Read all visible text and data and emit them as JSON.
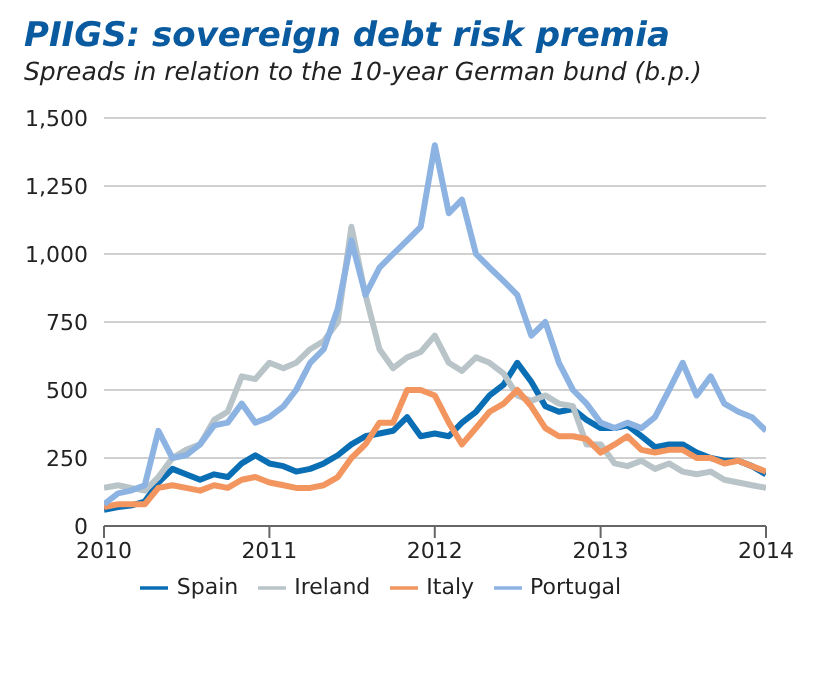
{
  "chart_data": {
    "type": "line",
    "title": "PIIGS: sovereign debt risk premia",
    "subtitle": "Spreads in relation to the 10-year German bund (b.p.)",
    "x": [
      "2010-01",
      "2010-02",
      "2010-03",
      "2010-04",
      "2010-05",
      "2010-06",
      "2010-07",
      "2010-08",
      "2010-09",
      "2010-10",
      "2010-11",
      "2010-12",
      "2011-01",
      "2011-02",
      "2011-03",
      "2011-04",
      "2011-05",
      "2011-06",
      "2011-07",
      "2011-08",
      "2011-09",
      "2011-10",
      "2011-11",
      "2011-12",
      "2012-01",
      "2012-02",
      "2012-03",
      "2012-04",
      "2012-05",
      "2012-06",
      "2012-07",
      "2012-08",
      "2012-09",
      "2012-10",
      "2012-11",
      "2012-12",
      "2013-01",
      "2013-02",
      "2013-03",
      "2013-04",
      "2013-05",
      "2013-06",
      "2013-07",
      "2013-08",
      "2013-09",
      "2013-10",
      "2013-11",
      "2013-12",
      "2014-01"
    ],
    "series": [
      {
        "name": "Spain",
        "color": "#0a6eb4",
        "values": [
          60,
          70,
          75,
          90,
          160,
          210,
          190,
          170,
          190,
          180,
          230,
          260,
          230,
          220,
          200,
          210,
          230,
          260,
          300,
          330,
          340,
          350,
          400,
          330,
          340,
          330,
          380,
          420,
          480,
          520,
          600,
          530,
          440,
          420,
          430,
          390,
          360,
          360,
          370,
          330,
          290,
          300,
          300,
          270,
          250,
          240,
          240,
          220,
          190
        ]
      },
      {
        "name": "Ireland",
        "color": "#b9c4c9",
        "values": [
          140,
          150,
          140,
          130,
          180,
          250,
          280,
          300,
          390,
          420,
          550,
          540,
          600,
          580,
          600,
          650,
          680,
          750,
          1100,
          850,
          650,
          580,
          620,
          640,
          700,
          600,
          570,
          620,
          600,
          560,
          480,
          460,
          480,
          450,
          440,
          300,
          300,
          230,
          220,
          240,
          210,
          230,
          200,
          190,
          200,
          170,
          160,
          150,
          140
        ]
      },
      {
        "name": "Italy",
        "color": "#f2955f",
        "values": [
          70,
          80,
          80,
          80,
          140,
          150,
          140,
          130,
          150,
          140,
          170,
          180,
          160,
          150,
          140,
          140,
          150,
          180,
          250,
          300,
          380,
          380,
          500,
          500,
          480,
          380,
          300,
          360,
          420,
          450,
          500,
          440,
          360,
          330,
          330,
          320,
          270,
          300,
          330,
          280,
          270,
          280,
          280,
          250,
          250,
          230,
          240,
          220,
          200
        ]
      },
      {
        "name": "Portugal",
        "color": "#8db3e2",
        "values": [
          80,
          120,
          130,
          150,
          350,
          250,
          260,
          300,
          370,
          380,
          450,
          380,
          400,
          440,
          500,
          600,
          650,
          800,
          1050,
          850,
          950,
          1000,
          1050,
          1100,
          1400,
          1150,
          1200,
          1000,
          950,
          900,
          850,
          700,
          750,
          600,
          500,
          450,
          380,
          360,
          380,
          360,
          400,
          500,
          600,
          480,
          550,
          450,
          420,
          400,
          350
        ]
      }
    ],
    "xlim": [
      "2010-01",
      "2014-01"
    ],
    "xticks": [
      {
        "value": "2010-01",
        "label": "2010"
      },
      {
        "value": "2011-01",
        "label": "2011"
      },
      {
        "value": "2012-01",
        "label": "2012"
      },
      {
        "value": "2013-01",
        "label": "2013"
      },
      {
        "value": "2014-01",
        "label": "2014"
      }
    ],
    "ylim": [
      0,
      1500
    ],
    "yticks": [
      0,
      {
        "value": 250,
        "label": "250"
      },
      {
        "value": 500,
        "label": "500"
      },
      {
        "value": 750,
        "label": "750"
      },
      {
        "value": 1000,
        "label": "1,000"
      },
      {
        "value": 1250,
        "label": "1,250"
      },
      {
        "value": 1500,
        "label": "1,500"
      }
    ],
    "grid": "y",
    "legend": "bottom",
    "marker": "none",
    "line_style": "solid"
  }
}
